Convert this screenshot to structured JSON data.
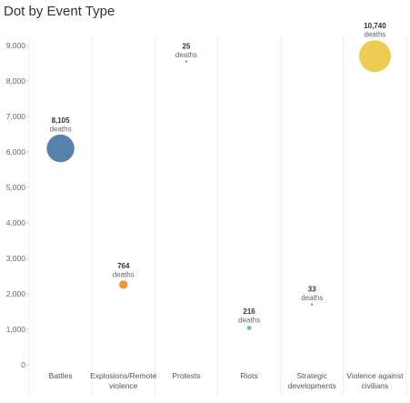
{
  "title": "Dot by Event Type",
  "chart_data": {
    "type": "scatter",
    "title": "Dot by Event Type",
    "xlabel": "",
    "ylabel": "",
    "ylim": [
      0,
      9000
    ],
    "y_ticks": [
      0,
      1000,
      2000,
      3000,
      4000,
      5000,
      6000,
      7000,
      8000,
      9000
    ],
    "y_tick_labels": [
      "0",
      "1,000",
      "2,000",
      "3,000",
      "4,000",
      "5,000",
      "6,000",
      "7,000",
      "8,000",
      "9,000"
    ],
    "grid": false,
    "categories": [
      [
        "Battles"
      ],
      [
        "Explosions/Remote",
        "violence"
      ],
      [
        "Protests"
      ],
      [
        "Riots"
      ],
      [
        "Strategic",
        "developments"
      ],
      [
        "Violence against",
        "civilians"
      ]
    ],
    "points": [
      {
        "y": 6100,
        "deaths": 8105,
        "value_label": "8,105",
        "unit_label": "deaths",
        "color": "#4e79a7"
      },
      {
        "y": 2260,
        "deaths": 764,
        "value_label": "764",
        "unit_label": "deaths",
        "color": "#f28e2b"
      },
      {
        "y": 8550,
        "deaths": 25,
        "value_label": "25",
        "unit_label": "deaths",
        "color": "#4e79a7"
      },
      {
        "y": 1040,
        "deaths": 216,
        "value_label": "216",
        "unit_label": "deaths",
        "color": "#76b7b2"
      },
      {
        "y": 1700,
        "deaths": 33,
        "value_label": "33",
        "unit_label": "deaths",
        "color": "#4e79a7"
      },
      {
        "y": 8700,
        "deaths": 10740,
        "value_label": "10,740",
        "unit_label": "deaths",
        "color": "#edc948"
      }
    ],
    "size_encodes": "deaths"
  }
}
